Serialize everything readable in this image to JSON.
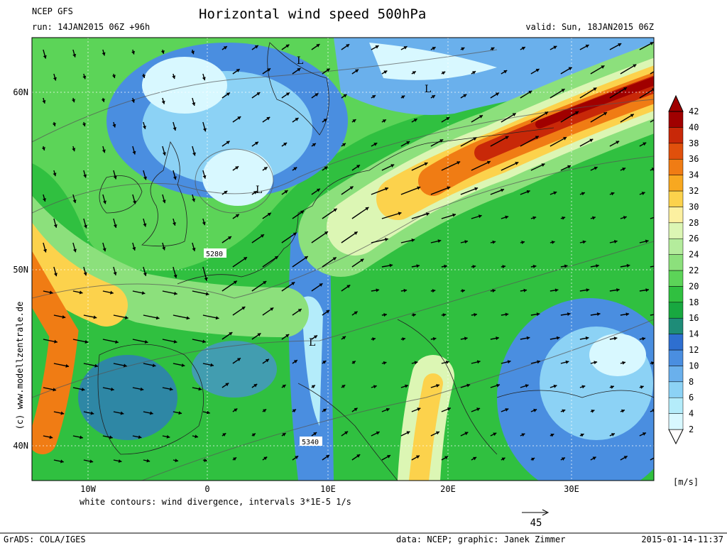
{
  "header": {
    "model": "NCEP GFS",
    "title": "Horizontal wind speed 500hPa",
    "run": "run: 14JAN2015 06Z +96h",
    "valid": "valid: Sun, 18JAN2015 06Z"
  },
  "map": {
    "lat_labels": [
      "60N",
      "50N",
      "40N"
    ],
    "lon_labels": [
      "10W",
      "0",
      "10E",
      "20E",
      "30E"
    ],
    "labels": [
      "L",
      "L",
      "L",
      "L",
      "5280",
      "5340"
    ],
    "note": "white contours: wind divergence, intervals 3*1E-5 1/s",
    "copyright": "(c) www.modellzentrale.de",
    "scale_arrow": "45"
  },
  "colorbar": {
    "unit": "[m/s]",
    "levels": [
      2,
      4,
      6,
      8,
      10,
      12,
      14,
      16,
      18,
      20,
      22,
      24,
      26,
      28,
      30,
      32,
      34,
      36,
      38,
      40,
      42
    ],
    "colors": [
      "#ffffff",
      "#d8f8ff",
      "#b4ecfa",
      "#8cd2f5",
      "#6ab0ec",
      "#4a8ee0",
      "#2e6fd0",
      "#1e8c78",
      "#18a840",
      "#30c040",
      "#5cd458",
      "#8ce07c",
      "#b4ec9c",
      "#dcf6b4",
      "#fcf0a0",
      "#fcd24c",
      "#f8a820",
      "#f07c14",
      "#e0500c",
      "#c82808",
      "#a00000",
      "#a00000"
    ]
  },
  "footer": {
    "left": "GrADS: COLA/IGES",
    "credit": "data: NCEP; graphic: Janek Zimmer",
    "timestamp": "2015-01-14-11:37"
  }
}
